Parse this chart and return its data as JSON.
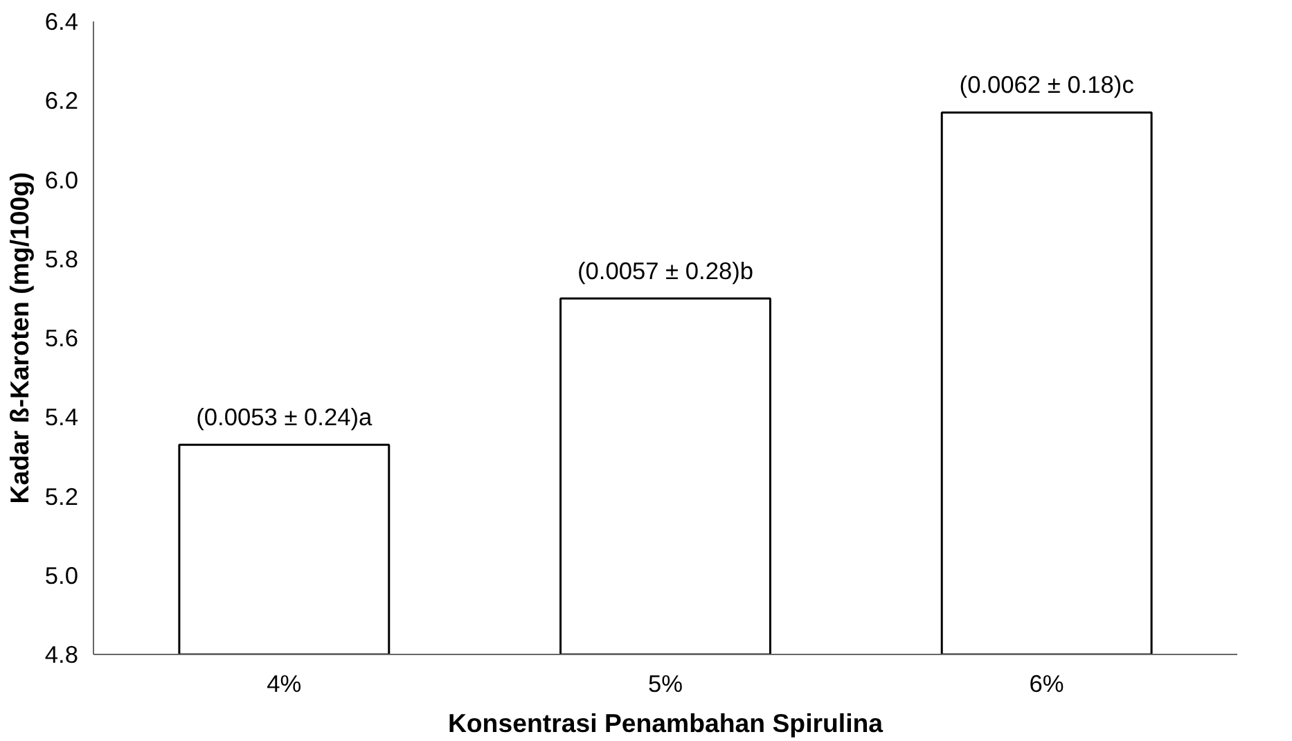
{
  "chart_data": {
    "type": "bar",
    "xlabel": "Konsentrasi Penambahan Spirulina",
    "ylabel": "Kadar ß-Karoten (mg/100g)",
    "categories": [
      "4%",
      "5%",
      "6%"
    ],
    "values": [
      5.33,
      5.7,
      6.17
    ],
    "color": "#ffffff",
    "value_labels": [
      "(0.0053 ± 0.24)a",
      "(0.0057 ± 0.28)b",
      "(0.0062 ± 0.18)c"
    ],
    "ylim": [
      4.8,
      6.4
    ],
    "yticks": [
      4.8,
      {
        "value": 5,
        "label": "5.0"
      },
      5.2,
      5.4,
      5.6,
      5.8,
      {
        "value": 6,
        "label": "6.0"
      },
      6.2,
      6.4
    ],
    "grid": false
  }
}
